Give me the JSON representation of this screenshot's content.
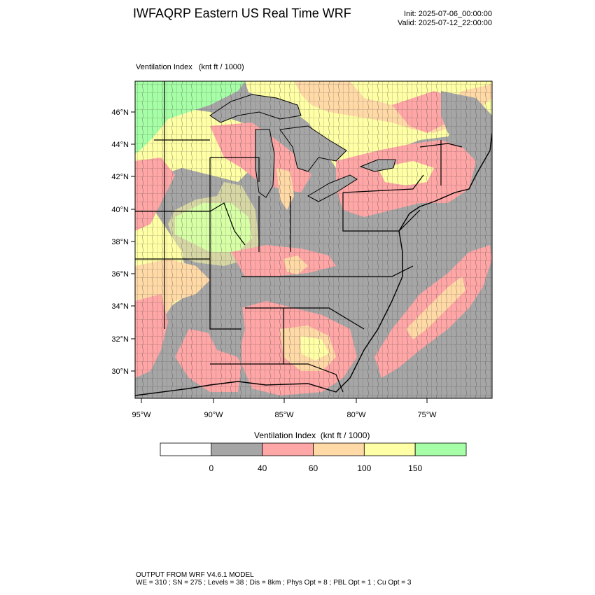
{
  "header": {
    "title": "IWFAQRP Eastern US Real Time WRF",
    "init": "Init: 2025-07-06_00:00:00",
    "valid": "Valid: 2025-07-12_22:00:00"
  },
  "plot": {
    "label": "Ventilation Index   (knt ft / 1000)",
    "lat_ticks": [
      "46°N",
      "44°N",
      "42°N",
      "40°N",
      "38°N",
      "36°N",
      "34°N",
      "32°N",
      "30°N"
    ],
    "lon_ticks": [
      "95°W",
      "90°W",
      "85°W",
      "80°W",
      "75°W"
    ]
  },
  "legend": {
    "title": "Ventilation Index  (knt ft / 1000)",
    "bins": [
      {
        "color": "#ffffff"
      },
      {
        "color": "#a6a6a6"
      },
      {
        "color": "#ffa6a6"
      },
      {
        "color": "#ffd9a6"
      },
      {
        "color": "#ffffa6"
      },
      {
        "color": "#a6ffa6"
      }
    ],
    "labels": [
      "0",
      "40",
      "60",
      "100",
      "150"
    ]
  },
  "colors": {
    "water": "#a6a6a6",
    "land_gray": "#a6a6a6",
    "pink": "#ffa6a6",
    "orange": "#ffd9a6",
    "yellow": "#ffffa6",
    "green": "#a6ffa6",
    "boundary": "#000000"
  },
  "footer": {
    "line1": "OUTPUT FROM WRF V4.6.1 MODEL",
    "line2": "WE = 310 ; SN = 275 ; Levels = 38 ; Dis = 8km ; Phys Opt = 8 ; PBL Opt = 1 ; Cu Opt = 3"
  }
}
